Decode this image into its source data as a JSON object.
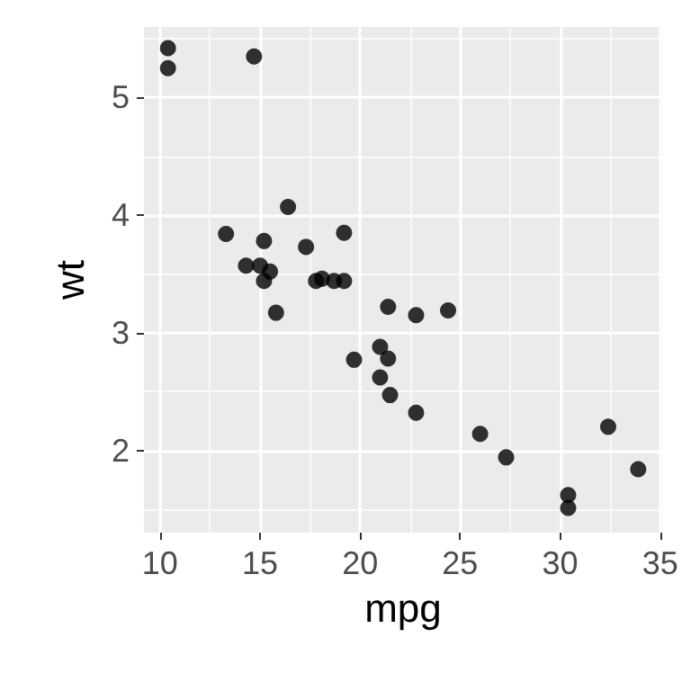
{
  "chart_data": {
    "type": "scatter",
    "xlabel": "mpg",
    "ylabel": "wt",
    "x": [
      21.0,
      21.0,
      22.8,
      21.4,
      18.7,
      18.1,
      14.3,
      24.4,
      22.8,
      19.2,
      17.8,
      16.4,
      17.3,
      15.2,
      10.4,
      10.4,
      14.7,
      32.4,
      30.4,
      33.9,
      21.5,
      15.5,
      15.2,
      13.3,
      19.2,
      27.3,
      26.0,
      30.4,
      15.8,
      19.7,
      15.0,
      21.4
    ],
    "values": [
      2.62,
      2.88,
      2.32,
      3.22,
      3.44,
      3.46,
      3.57,
      3.19,
      3.15,
      3.44,
      3.44,
      4.07,
      3.73,
      3.78,
      5.25,
      5.42,
      5.35,
      2.2,
      1.62,
      1.84,
      2.47,
      3.52,
      3.44,
      3.84,
      3.85,
      1.94,
      2.14,
      1.51,
      3.17,
      2.77,
      3.57,
      2.78
    ],
    "color": "#000000",
    "marker": "circle",
    "xlim": [
      9.2,
      35.1
    ],
    "ylim": [
      1.3,
      5.6
    ],
    "xticks": [
      10,
      15,
      20,
      25,
      30,
      35
    ],
    "yticks": [
      2,
      3,
      4,
      5
    ],
    "grid": true
  }
}
